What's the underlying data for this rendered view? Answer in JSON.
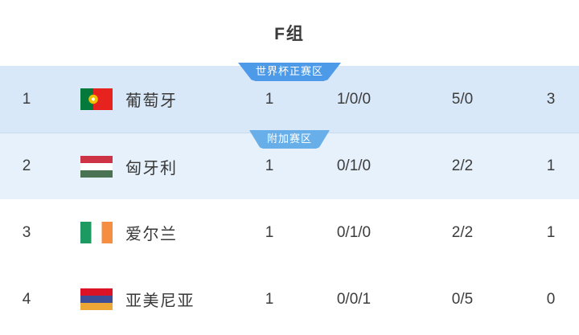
{
  "header": {
    "title": "F组"
  },
  "zones": {
    "qualified": {
      "label": "世界杯正赛区",
      "color": "#4d9be8"
    },
    "playoff": {
      "label": "附加赛区",
      "color": "#68afe9"
    }
  },
  "colors": {
    "qualified_row_bg": "#d9e8f9",
    "playoff_row_bg": "#e7f1fc",
    "plain_row_bg": "#ffffff",
    "text": "#383838"
  },
  "rows": [
    {
      "rank": "1",
      "team": "葡萄牙",
      "flag": "portugal",
      "zone": "qualified",
      "played": "1",
      "wdl": "1/0/0",
      "goals": "5/0",
      "points": "3"
    },
    {
      "rank": "2",
      "team": "匈牙利",
      "flag": "hungary",
      "zone": "playoff",
      "played": "1",
      "wdl": "0/1/0",
      "goals": "2/2",
      "points": "1"
    },
    {
      "rank": "3",
      "team": "爱尔兰",
      "flag": "ireland",
      "zone": "",
      "played": "1",
      "wdl": "0/1/0",
      "goals": "2/2",
      "points": "1"
    },
    {
      "rank": "4",
      "team": "亚美尼亚",
      "flag": "armenia",
      "zone": "",
      "played": "1",
      "wdl": "0/0/1",
      "goals": "0/5",
      "points": "0"
    }
  ]
}
